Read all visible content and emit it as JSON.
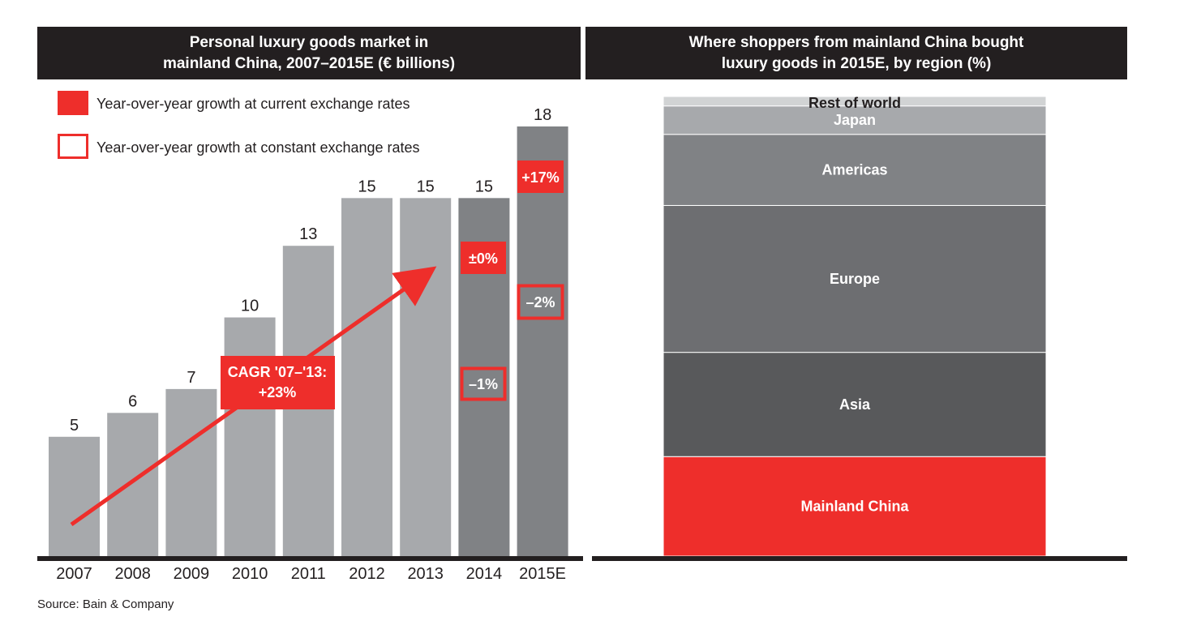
{
  "left_panel": {
    "title": "Personal luxury goods market in\nmainland China,  2007–2015E (€ billions)"
  },
  "right_panel": {
    "title": "Where shoppers from mainland China bought\nluxury goods in 2015E, by region (%)"
  },
  "source": "Source: Bain & Company",
  "colors": {
    "accent_red": "#ee2e2b",
    "bar_light": "#a7a9ac",
    "bar_dark": "#808285",
    "header_bg": "#231f20"
  },
  "chart_data": [
    {
      "type": "bar",
      "title": "Personal luxury goods market in mainland China,  2007–2015E (€ billions)",
      "categories": [
        "2007",
        "2008",
        "2009",
        "2010",
        "2011",
        "2012",
        "2013",
        "2014",
        "2015E"
      ],
      "values": [
        5,
        6,
        7,
        10,
        13,
        15,
        15,
        15,
        18
      ],
      "value_labels": [
        "5",
        "6",
        "7",
        "10",
        "13",
        "15",
        "15",
        "15",
        "18"
      ],
      "ylim": [
        0,
        18
      ],
      "grid": false,
      "legend": {
        "position": "top-left",
        "items": [
          {
            "label": "Year-over-year growth at current exchange rates",
            "style": "filled",
            "color": "#ee2e2b"
          },
          {
            "label": "Year-over-year growth at constant exchange rates",
            "style": "outline",
            "color": "#ee2e2b"
          }
        ]
      },
      "growth_annotations": [
        {
          "category": "2014",
          "current": "±0%",
          "constant": "–1%"
        },
        {
          "category": "2015E",
          "current": "+17%",
          "constant": "–2%"
        }
      ],
      "trend_annotation": {
        "label_line1": "CAGR '07–'13:",
        "label_line2": "+23%",
        "from": "2007",
        "to": "2013"
      }
    },
    {
      "type": "bar",
      "subtype": "stacked-100",
      "title": "Where shoppers from mainland China bought luxury goods in 2015E, by region (%)",
      "categories": [
        "Mainland China",
        "Asia",
        "Europe",
        "Americas",
        "Japan",
        "Rest of world"
      ],
      "values": [
        21,
        22,
        31,
        15,
        6,
        2
      ],
      "colors": [
        "#ee2e2b",
        "#58595b",
        "#6d6e71",
        "#808285",
        "#a7a9ac",
        "#d1d3d4"
      ],
      "ylim": [
        0,
        100
      ]
    }
  ]
}
